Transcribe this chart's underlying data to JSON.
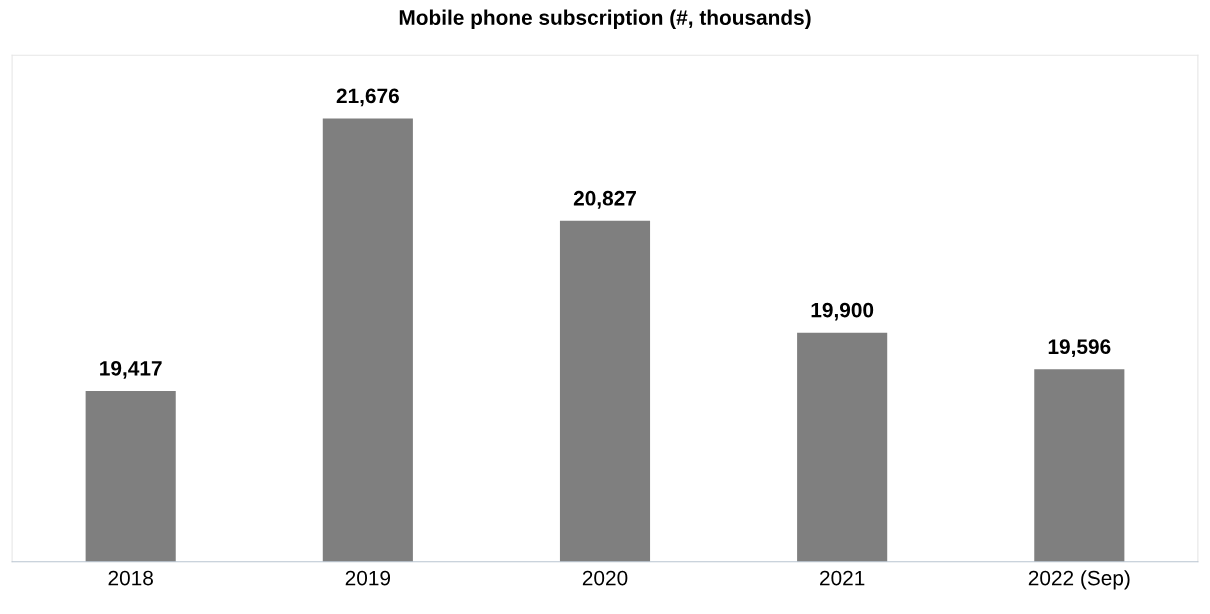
{
  "chart_data": {
    "type": "bar",
    "title": "Mobile phone subscription (#, thousands)",
    "categories": [
      "2018",
      "2019",
      "2020",
      "2021",
      "2022 (Sep)"
    ],
    "values": [
      19417,
      21676,
      20827,
      19900,
      19596
    ],
    "value_labels": [
      "19,417",
      "21,676",
      "20,827",
      "19,900",
      "19,596"
    ],
    "color": "#7f7f7f",
    "ylim": [
      18000,
      22200
    ],
    "tick_labels": "x",
    "grid": false,
    "legend": false
  }
}
